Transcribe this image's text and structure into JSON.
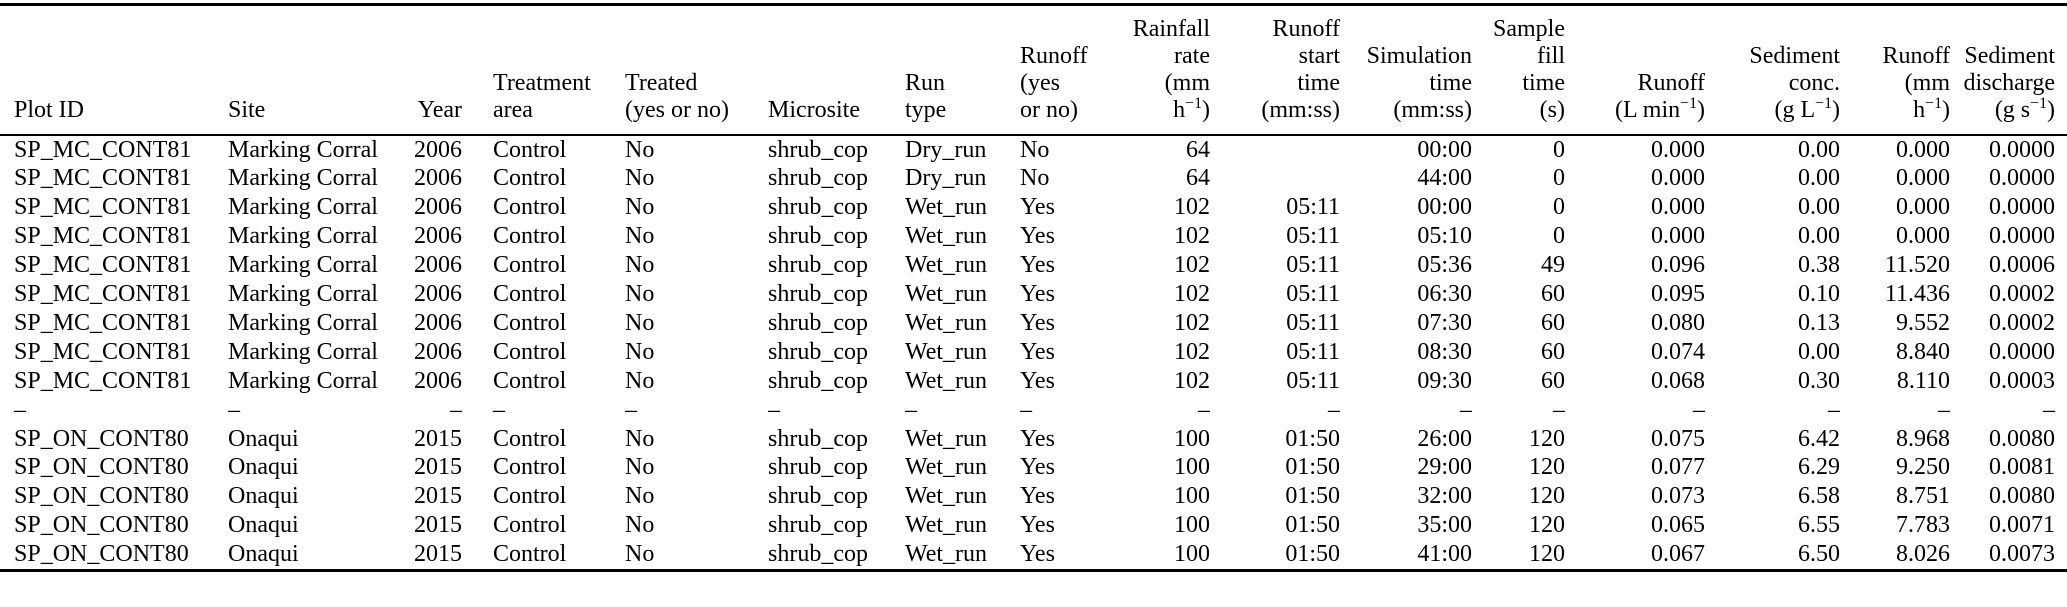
{
  "table": {
    "columns": [
      {
        "key": "plot-id",
        "label": "Plot ID",
        "lines": [
          "Plot ID"
        ]
      },
      {
        "key": "site",
        "label": "Site",
        "lines": [
          "Site"
        ]
      },
      {
        "key": "year",
        "label": "Year",
        "lines": [
          "Year"
        ]
      },
      {
        "key": "treatment-area",
        "label": "Treatment area",
        "lines": [
          "Treatment",
          "area"
        ]
      },
      {
        "key": "treated",
        "label": "Treated (yes or no)",
        "lines": [
          "Treated",
          "(yes or no)"
        ]
      },
      {
        "key": "microsite",
        "label": "Microsite",
        "lines": [
          "Microsite"
        ]
      },
      {
        "key": "run-type",
        "label": "Run type",
        "lines": [
          "Run",
          "type"
        ]
      },
      {
        "key": "runoff-yes-no",
        "label": "Runoff (yes or no)",
        "lines": [
          "Runoff",
          "(yes",
          "or no)"
        ]
      },
      {
        "key": "rainfall-rate",
        "label": "Rainfall rate (mm h−1)",
        "lines": [
          "Rainfall",
          "rate",
          "(mm",
          "h^{−1})"
        ]
      },
      {
        "key": "runoff-start-time",
        "label": "Runoff start time (mm:ss)",
        "lines": [
          "Runoff",
          "start",
          "time",
          "(mm:ss)"
        ]
      },
      {
        "key": "simulation-time",
        "label": "Simulation time (mm:ss)",
        "lines": [
          "Simulation",
          "time",
          "(mm:ss)"
        ]
      },
      {
        "key": "sample-fill-time",
        "label": "Sample fill time (s)",
        "lines": [
          "Sample",
          "fill",
          "time",
          "(s)"
        ]
      },
      {
        "key": "runoff-l-min",
        "label": "Runoff (L min−1)",
        "lines": [
          "Runoff",
          "(L min^{−1})"
        ]
      },
      {
        "key": "sediment-conc",
        "label": "Sediment conc. (g L−1)",
        "lines": [
          "Sediment",
          "conc.",
          "(g L^{−1})"
        ]
      },
      {
        "key": "runoff-mm-h",
        "label": "Runoff (mm h−1)",
        "lines": [
          "Runoff",
          "(mm",
          "h^{−1})"
        ]
      },
      {
        "key": "sediment-discharge",
        "label": "Sediment discharge (g s−1)",
        "lines": [
          "Sediment",
          "discharge",
          "(g s^{−1})"
        ]
      }
    ],
    "rows": [
      [
        "SP_MC_CONT81",
        "Marking Corral",
        "2006",
        "Control",
        "No",
        "shrub_cop",
        "Dry_run",
        "No",
        "64",
        "",
        "00:00",
        "0",
        "0.000",
        "0.00",
        "0.000",
        "0.0000"
      ],
      [
        "SP_MC_CONT81",
        "Marking Corral",
        "2006",
        "Control",
        "No",
        "shrub_cop",
        "Dry_run",
        "No",
        "64",
        "",
        "44:00",
        "0",
        "0.000",
        "0.00",
        "0.000",
        "0.0000"
      ],
      [
        "SP_MC_CONT81",
        "Marking Corral",
        "2006",
        "Control",
        "No",
        "shrub_cop",
        "Wet_run",
        "Yes",
        "102",
        "05:11",
        "00:00",
        "0",
        "0.000",
        "0.00",
        "0.000",
        "0.0000"
      ],
      [
        "SP_MC_CONT81",
        "Marking Corral",
        "2006",
        "Control",
        "No",
        "shrub_cop",
        "Wet_run",
        "Yes",
        "102",
        "05:11",
        "05:10",
        "0",
        "0.000",
        "0.00",
        "0.000",
        "0.0000"
      ],
      [
        "SP_MC_CONT81",
        "Marking Corral",
        "2006",
        "Control",
        "No",
        "shrub_cop",
        "Wet_run",
        "Yes",
        "102",
        "05:11",
        "05:36",
        "49",
        "0.096",
        "0.38",
        "11.520",
        "0.0006"
      ],
      [
        "SP_MC_CONT81",
        "Marking Corral",
        "2006",
        "Control",
        "No",
        "shrub_cop",
        "Wet_run",
        "Yes",
        "102",
        "05:11",
        "06:30",
        "60",
        "0.095",
        "0.10",
        "11.436",
        "0.0002"
      ],
      [
        "SP_MC_CONT81",
        "Marking Corral",
        "2006",
        "Control",
        "No",
        "shrub_cop",
        "Wet_run",
        "Yes",
        "102",
        "05:11",
        "07:30",
        "60",
        "0.080",
        "0.13",
        "9.552",
        "0.0002"
      ],
      [
        "SP_MC_CONT81",
        "Marking Corral",
        "2006",
        "Control",
        "No",
        "shrub_cop",
        "Wet_run",
        "Yes",
        "102",
        "05:11",
        "08:30",
        "60",
        "0.074",
        "0.00",
        "8.840",
        "0.0000"
      ],
      [
        "SP_MC_CONT81",
        "Marking Corral",
        "2006",
        "Control",
        "No",
        "shrub_cop",
        "Wet_run",
        "Yes",
        "102",
        "05:11",
        "09:30",
        "60",
        "0.068",
        "0.30",
        "8.110",
        "0.0003"
      ],
      [
        "–",
        "–",
        "–",
        "–",
        "–",
        "–",
        "–",
        "–",
        "–",
        "–",
        "–",
        "–",
        "–",
        "–",
        "–",
        "–"
      ],
      [
        "SP_ON_CONT80",
        "Onaqui",
        "2015",
        "Control",
        "No",
        "shrub_cop",
        "Wet_run",
        "Yes",
        "100",
        "01:50",
        "26:00",
        "120",
        "0.075",
        "6.42",
        "8.968",
        "0.0080"
      ],
      [
        "SP_ON_CONT80",
        "Onaqui",
        "2015",
        "Control",
        "No",
        "shrub_cop",
        "Wet_run",
        "Yes",
        "100",
        "01:50",
        "29:00",
        "120",
        "0.077",
        "6.29",
        "9.250",
        "0.0081"
      ],
      [
        "SP_ON_CONT80",
        "Onaqui",
        "2015",
        "Control",
        "No",
        "shrub_cop",
        "Wet_run",
        "Yes",
        "100",
        "01:50",
        "32:00",
        "120",
        "0.073",
        "6.58",
        "8.751",
        "0.0080"
      ],
      [
        "SP_ON_CONT80",
        "Onaqui",
        "2015",
        "Control",
        "No",
        "shrub_cop",
        "Wet_run",
        "Yes",
        "100",
        "01:50",
        "35:00",
        "120",
        "0.065",
        "6.55",
        "7.783",
        "0.0071"
      ],
      [
        "SP_ON_CONT80",
        "Onaqui",
        "2015",
        "Control",
        "No",
        "shrub_cop",
        "Wet_run",
        "Yes",
        "100",
        "01:50",
        "41:00",
        "120",
        "0.067",
        "6.50",
        "8.026",
        "0.0073"
      ]
    ]
  }
}
